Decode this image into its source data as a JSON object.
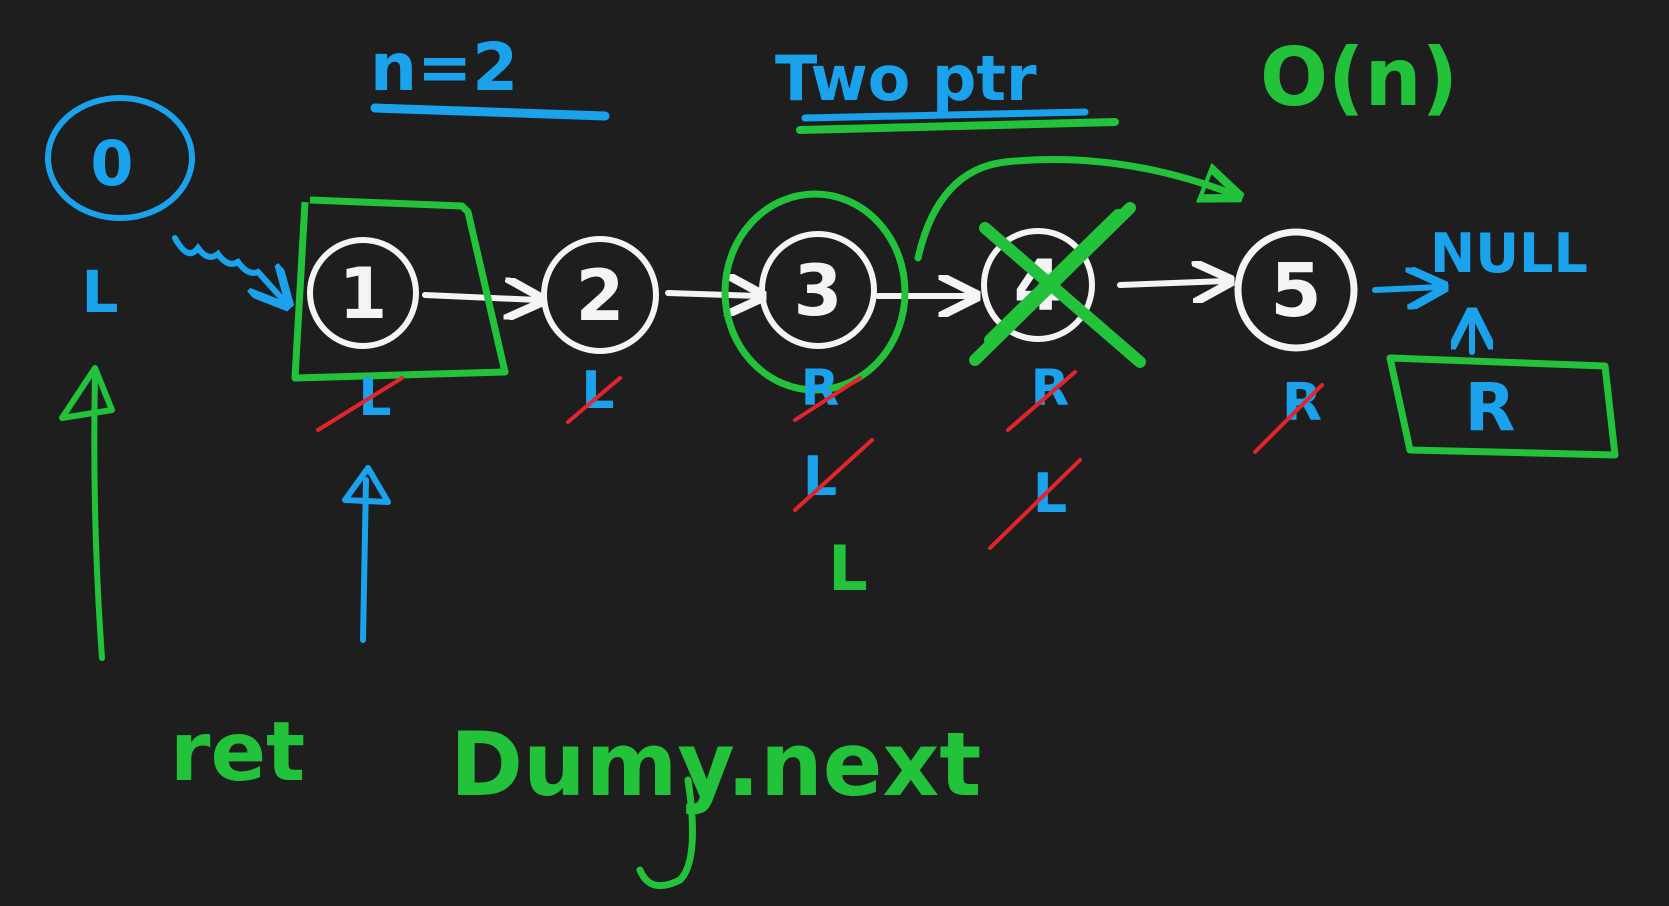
{
  "colors": {
    "background": "#1e1e1f",
    "blue": "#1aa3ec",
    "green": "#22c33a",
    "white": "#f4f4f4",
    "red": "#e3242b"
  },
  "header": {
    "n_label": "n=2",
    "method_label": "Two ptr",
    "complexity_label": "O(n)"
  },
  "dummy_node": {
    "value": "0",
    "pointer_label": "L"
  },
  "nodes": [
    {
      "value": "1"
    },
    {
      "value": "2"
    },
    {
      "value": "3"
    },
    {
      "value": "4"
    },
    {
      "value": "5"
    }
  ],
  "null_label": "NULL",
  "pointer_history": {
    "under_node_1": "L",
    "under_node_2": "L",
    "under_node_3": [
      "R",
      "L",
      "L"
    ],
    "under_node_4": [
      "R",
      "L"
    ],
    "under_node_5": "R",
    "under_null": "R"
  },
  "return_label": "ret",
  "return_expression": "Dumy.next"
}
